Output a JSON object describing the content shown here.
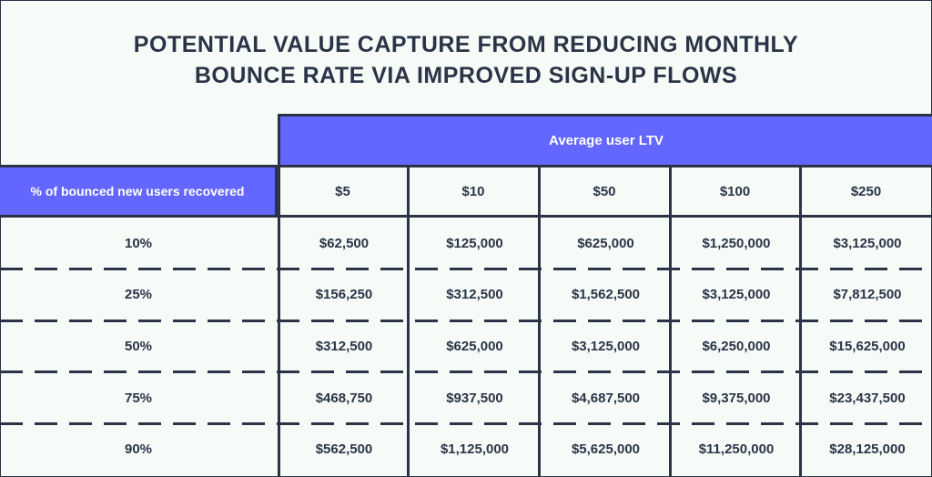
{
  "chart_data": {
    "type": "table",
    "title_lines": [
      "POTENTIAL VALUE CAPTURE FROM REDUCING MONTHLY",
      "BOUNCE RATE VIA IMPROVED SIGN-UP FLOWS"
    ],
    "column_group_label": "Average user LTV",
    "row_header_label": "% of bounced new users recovered",
    "columns": [
      "$5",
      "$10",
      "$50",
      "$100",
      "$250"
    ],
    "rows": [
      {
        "label": "10%",
        "values": [
          "$62,500",
          "$125,000",
          "$625,000",
          "$1,250,000",
          "$3,125,000"
        ]
      },
      {
        "label": "25%",
        "values": [
          "$156,250",
          "$312,500",
          "$1,562,500",
          "$3,125,000",
          "$7,812,500"
        ]
      },
      {
        "label": "50%",
        "values": [
          "$312,500",
          "$625,000",
          "$3,125,000",
          "$6,250,000",
          "$15,625,000"
        ]
      },
      {
        "label": "75%",
        "values": [
          "$468,750",
          "$937,500",
          "$4,687,500",
          "$9,375,000",
          "$23,437,500"
        ]
      },
      {
        "label": "90%",
        "values": [
          "$562,500",
          "$1,125,000",
          "$5,625,000",
          "$11,250,000",
          "$28,125,000"
        ]
      }
    ]
  },
  "colors": {
    "accent": "#6366ff",
    "ink": "#2b3447",
    "background": "#f6fbf8"
  }
}
